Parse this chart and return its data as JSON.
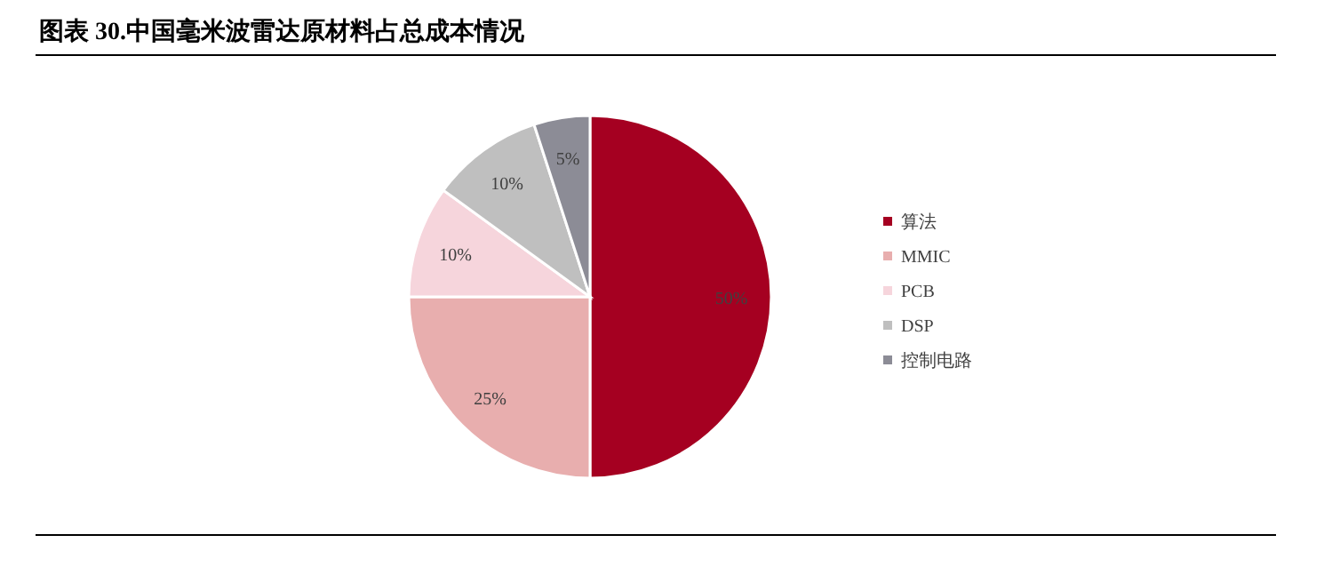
{
  "chart_data": {
    "type": "pie",
    "title": "图表 30.中国毫米波雷达原材料占总成本情况",
    "categories": [
      "算法",
      "MMIC",
      "PCB",
      "DSP",
      "控制电路"
    ],
    "values": [
      50,
      25,
      10,
      10,
      5
    ],
    "colors": [
      "#a50021",
      "#e8aeae",
      "#f6d5dc",
      "#bfbfbf",
      "#8c8c96"
    ],
    "value_labels": [
      "50%",
      "25%",
      "10%",
      "10%",
      "5%"
    ],
    "legend": "right"
  }
}
